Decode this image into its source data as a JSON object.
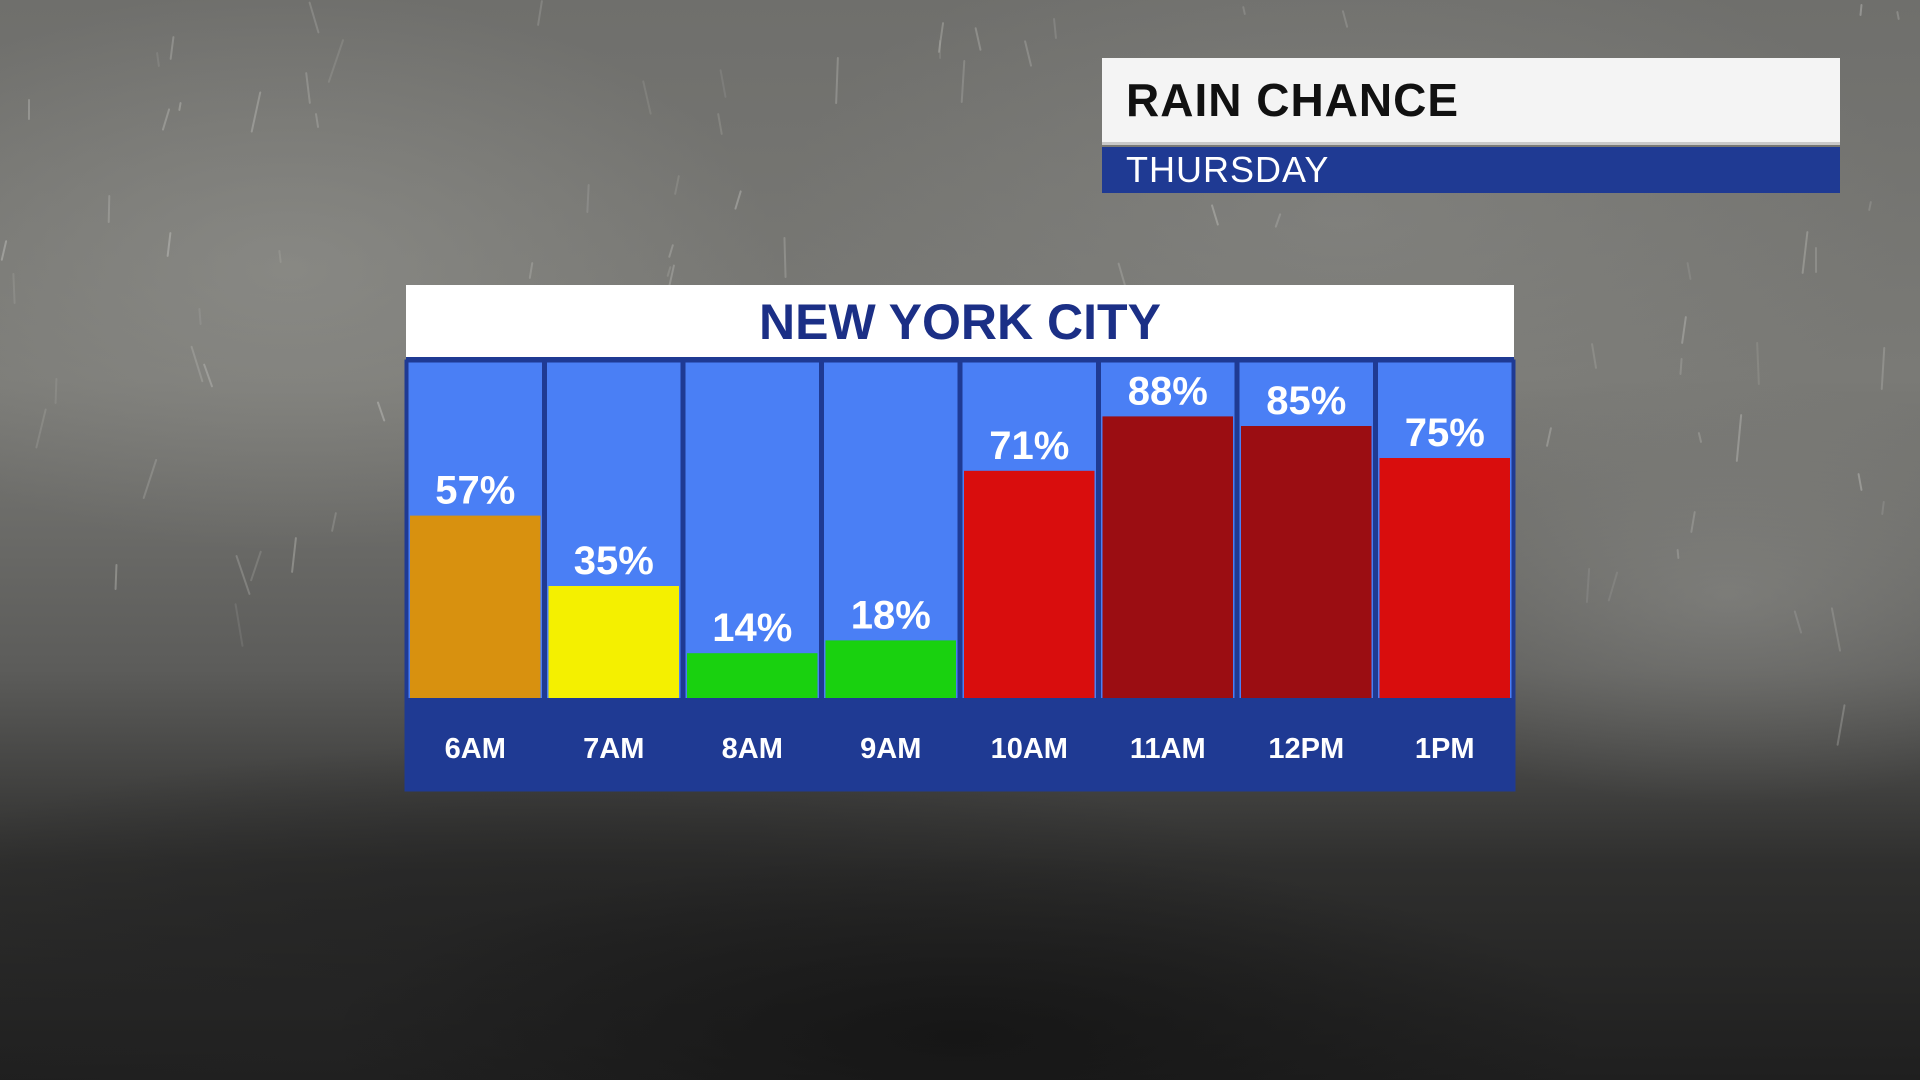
{
  "header": {
    "title": "RAIN CHANCE",
    "subtitle": "THURSDAY"
  },
  "panel": {
    "title": "NEW YORK CITY"
  },
  "colors": {
    "column_bg": "#4a7ff5",
    "label_band": "#1f3a93",
    "border": "#1f3a93",
    "orange": "#d8910f",
    "yellow": "#f4f000",
    "green": "#19d10f",
    "red": "#d90d0d",
    "dark_red": "#9b0d12"
  },
  "chart_data": {
    "type": "bar",
    "title": "NEW YORK CITY",
    "categories": [
      "6AM",
      "7AM",
      "8AM",
      "9AM",
      "10AM",
      "11AM",
      "12PM",
      "1PM"
    ],
    "values": [
      57,
      35,
      14,
      18,
      71,
      88,
      85,
      75
    ],
    "value_labels": [
      "57%",
      "35%",
      "14%",
      "18%",
      "71%",
      "88%",
      "85%",
      "75%"
    ],
    "bar_colors": [
      "#d8910f",
      "#f4f000",
      "#19d10f",
      "#19d10f",
      "#d90d0d",
      "#9b0d12",
      "#9b0d12",
      "#d90d0d"
    ],
    "ylim": [
      0,
      100
    ],
    "xlabel": "",
    "ylabel": "",
    "grid": false,
    "legend": "none"
  }
}
